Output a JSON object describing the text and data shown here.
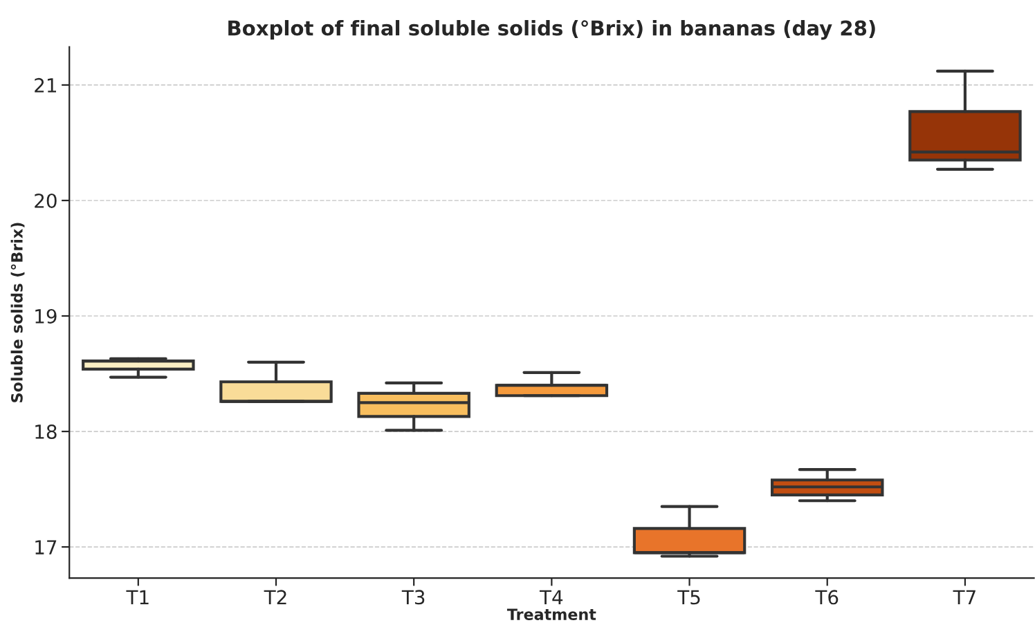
{
  "chart_data": {
    "type": "box",
    "title": "Boxplot of final soluble solids (°Brix) in bananas (day 28)",
    "xlabel": "Treatment",
    "ylabel": "Soluble solids (°Brix)",
    "categories": [
      "T1",
      "T2",
      "T3",
      "T4",
      "T5",
      "T6",
      "T7"
    ],
    "colors": [
      "#fbefc3",
      "#f9dc98",
      "#f8be5e",
      "#f59a3c",
      "#e8742a",
      "#c24e12",
      "#963408"
    ],
    "boxes": [
      {
        "low": 18.47,
        "q1": 18.54,
        "median": 18.61,
        "q3": 18.61,
        "high": 18.63
      },
      {
        "low": 18.26,
        "q1": 18.26,
        "median": 18.26,
        "q3": 18.43,
        "high": 18.6
      },
      {
        "low": 18.01,
        "q1": 18.13,
        "median": 18.25,
        "q3": 18.33,
        "high": 18.42
      },
      {
        "low": 18.31,
        "q1": 18.31,
        "median": 18.4,
        "q3": 18.4,
        "high": 18.51
      },
      {
        "low": 16.92,
        "q1": 16.95,
        "median": 16.95,
        "q3": 17.16,
        "high": 17.35
      },
      {
        "low": 17.4,
        "q1": 17.45,
        "median": 17.52,
        "q3": 17.58,
        "high": 17.67
      },
      {
        "low": 20.27,
        "q1": 20.35,
        "median": 20.42,
        "q3": 20.77,
        "high": 21.12
      }
    ],
    "ylim": [
      16.73,
      21.33
    ],
    "yticks": [
      17,
      18,
      19,
      20,
      21
    ],
    "grid": "y"
  }
}
